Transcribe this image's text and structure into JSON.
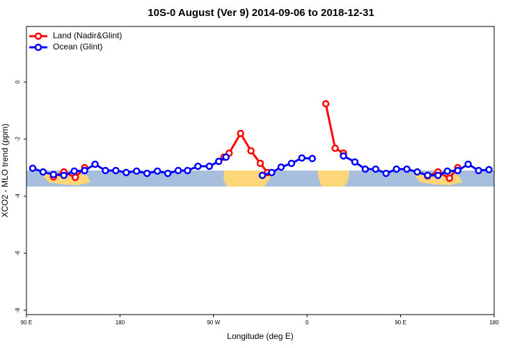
{
  "chart_data": {
    "type": "line",
    "title": "10S-0 August (Ver 9)   2014-09-06 to 2018-12-31",
    "xlabel": "Longitude (deg E)",
    "ylabel": "XCO2 - MLO trend (ppm)",
    "xlim": [
      90,
      540
    ],
    "ylim": [
      -8.15,
      1.95
    ],
    "xticks": [
      {
        "value": 90,
        "label": "90 E"
      },
      180,
      {
        "value": 270,
        "label": "90 W"
      },
      {
        "value": 360,
        "label": "0"
      },
      {
        "value": 450,
        "label": "90 E"
      },
      {
        "value": 540,
        "label": "180"
      }
    ],
    "yticks": [
      0,
      -2,
      -4,
      -6,
      -8
    ],
    "legend": "top-left",
    "series": [
      {
        "name": "Land (Nadir&Glint)",
        "color": "#ff0000",
        "x": [
          116,
          126,
          137,
          146,
          null,
          280,
          285,
          296,
          306,
          315,
          322,
          null,
          378,
          387,
          395,
          null,
          476,
          486,
          497,
          505
        ],
        "values": [
          -3.32,
          -3.15,
          -3.34,
          -3.0,
          null,
          -2.63,
          -2.49,
          -1.8,
          -2.41,
          -2.85,
          -3.17,
          null,
          -0.76,
          -2.32,
          -2.49,
          null,
          -3.29,
          -3.15,
          -3.37,
          -3.0
        ]
      },
      {
        "name": "Ocean (Glint)",
        "color": "#0000ff",
        "x": [
          96,
          106,
          116,
          126,
          136,
          146,
          156,
          166,
          176,
          186,
          196,
          206,
          216,
          226,
          236,
          245,
          255,
          266,
          275,
          282,
          null,
          317,
          326,
          335,
          345,
          355,
          365,
          null,
          395,
          406,
          416,
          426,
          436,
          446,
          456,
          466,
          476,
          486,
          495,
          505,
          515,
          525,
          535
        ],
        "values": [
          -3.02,
          -3.15,
          -3.24,
          -3.27,
          -3.12,
          -3.1,
          -2.88,
          -3.1,
          -3.1,
          -3.17,
          -3.12,
          -3.2,
          -3.12,
          -3.2,
          -3.1,
          -3.1,
          -2.95,
          -2.95,
          -2.78,
          -2.63,
          null,
          -3.27,
          -3.17,
          -2.98,
          -2.85,
          -2.66,
          -2.68,
          null,
          -2.59,
          -2.8,
          -3.05,
          -3.05,
          -3.2,
          -3.05,
          -3.05,
          -3.15,
          -3.27,
          -3.27,
          -3.12,
          -3.1,
          -2.88,
          -3.1,
          -3.07
        ]
      }
    ]
  }
}
